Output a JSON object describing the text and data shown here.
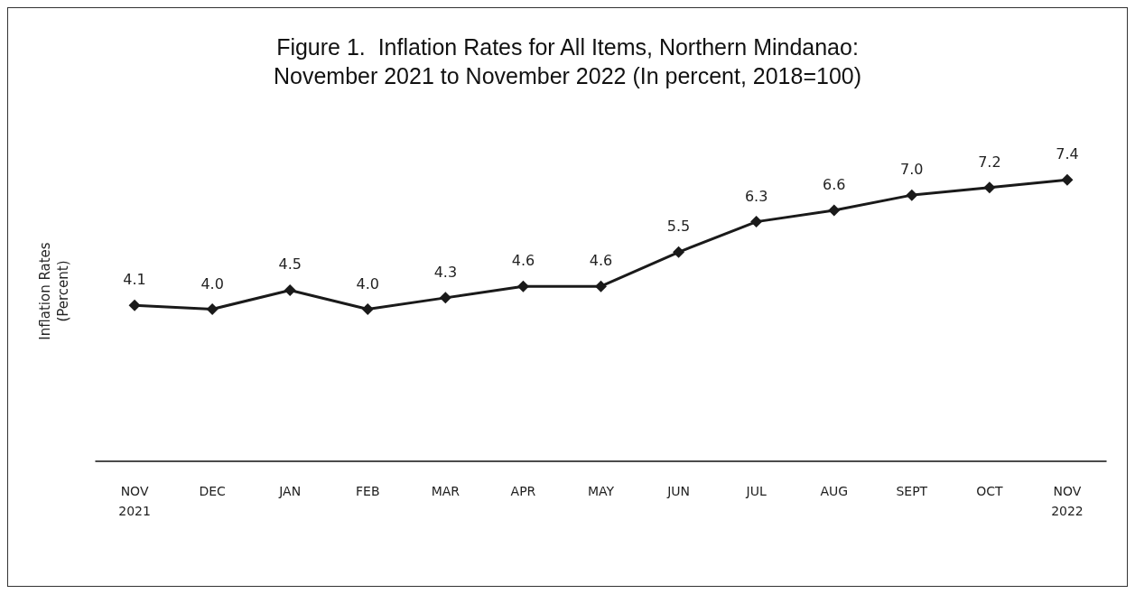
{
  "chart_data": {
    "type": "line",
    "title": "Figure 1.  Inflation Rates for All Items, Northern Mindanao:\nNovember 2021 to November 2022 (In percent, 2018=100)",
    "ylabel": "Inflation Rates\n(Percent)",
    "categories": [
      "NOV\n2021",
      "DEC",
      "JAN",
      "FEB",
      "MAR",
      "APR",
      "MAY",
      "JUN",
      "JUL",
      "AUG",
      "SEPT",
      "OCT",
      "NOV\n2022"
    ],
    "series": [
      {
        "color": "#1a1a1a",
        "values": [
          4.1,
          4.0,
          4.5,
          4.0,
          4.3,
          4.6,
          4.6,
          5.5,
          6.3,
          6.6,
          7.0,
          7.2,
          7.4
        ],
        "value_labels": [
          "4.1",
          "4.0",
          "4.5",
          "4.0",
          "4.3",
          "4.6",
          "4.6",
          "5.5",
          "6.3",
          "6.6",
          "7.0",
          "7.2",
          "7.4"
        ]
      }
    ],
    "relative": false,
    "marker": "diamond",
    "line_style": "solid",
    "grid": false
  }
}
